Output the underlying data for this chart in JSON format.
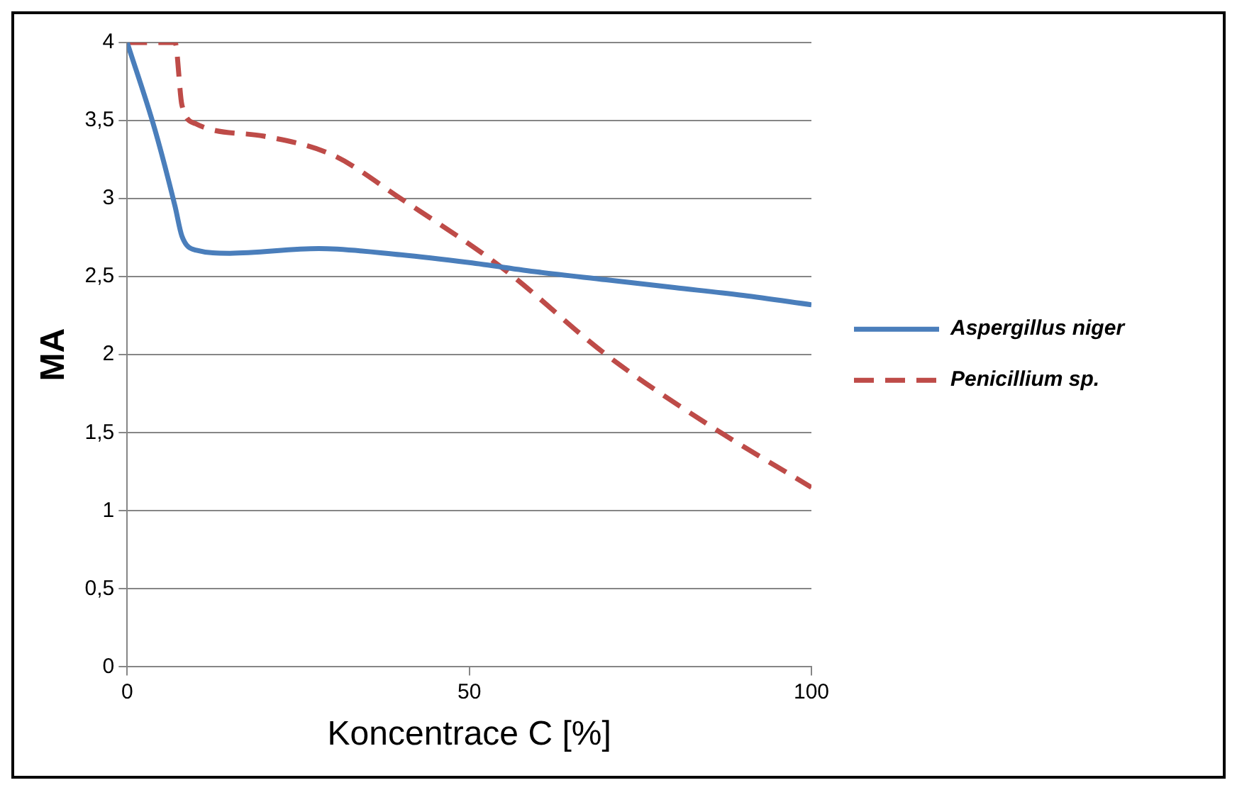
{
  "chart_data": {
    "type": "line",
    "xlabel": "Koncentrace C [%]",
    "ylabel": "MA",
    "xlim": [
      0,
      100
    ],
    "xticks": [
      0,
      50,
      100
    ],
    "ylim": [
      0,
      4
    ],
    "yticks": [
      0,
      {
        "value": 0.5,
        "label": "0,5"
      },
      1,
      {
        "value": 1.5,
        "label": "1,5"
      },
      2,
      {
        "value": 2.5,
        "label": "2,5"
      },
      3,
      {
        "value": 3.5,
        "label": "3,5"
      },
      4
    ],
    "grid": "y",
    "legend": "right",
    "marker": "none",
    "series": [
      {
        "name": "Aspergillus niger",
        "color": "#4a7ebb",
        "line_style": "solid",
        "x": [
          0,
          4,
          7,
          8,
          10,
          15,
          28,
          40,
          50,
          60,
          70,
          80,
          90,
          100
        ],
        "values": [
          4,
          3.45,
          2.95,
          2.76,
          2.67,
          2.65,
          2.68,
          2.64,
          2.59,
          2.53,
          2.48,
          2.43,
          2.38,
          2.32
        ]
      },
      {
        "name": "Penicillium sp.",
        "color": "#be4b48",
        "line_style": "dashed",
        "x": [
          0,
          7,
          8,
          10,
          20,
          30,
          40,
          55,
          70,
          85,
          100
        ],
        "values": [
          4,
          4,
          3.6,
          3.48,
          3.4,
          3.28,
          3.0,
          2.55,
          2.0,
          1.55,
          1.15
        ]
      }
    ]
  }
}
